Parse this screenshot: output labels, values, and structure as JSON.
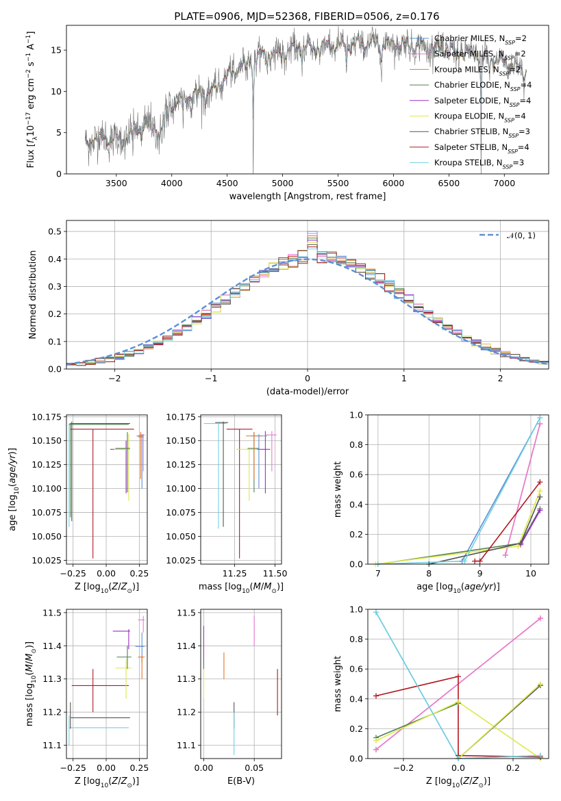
{
  "figure": {
    "title": "PLATE=0906, MJD=52368, FIBERID=0506, z=0.176"
  },
  "series_styles": [
    {
      "name": "Chabrier MILES",
      "color": "#5b8fd6"
    },
    {
      "name": "Salpeter MILES",
      "color": "#e879d7"
    },
    {
      "name": "Kroupa MILES",
      "color": "#e2772a"
    },
    {
      "name": "Chabrier ELODIE",
      "color": "#4f7f4f"
    },
    {
      "name": "Salpeter ELODIE",
      "color": "#9b2bc6"
    },
    {
      "name": "Kroupa ELODIE",
      "color": "#dde84a"
    },
    {
      "name": "Chabrier STELIB",
      "color": "#555555"
    },
    {
      "name": "Salpeter STELIB",
      "color": "#b0181f"
    },
    {
      "name": "Kroupa STELIB",
      "color": "#6fd2e0"
    }
  ],
  "chart_data": [
    {
      "id": "spectrum",
      "type": "line",
      "title": "PLATE=0906, MJD=52368, FIBERID=0506, z=0.176",
      "xlabel": "wavelength [Angstrom, rest frame]",
      "ylabel": "Flux [f_λ 10^-17 erg cm^-2 s^-1 A^-1]",
      "xlim": [
        3050,
        7400
      ],
      "ylim": [
        0,
        18
      ],
      "xticks": [
        3500,
        4000,
        4500,
        5000,
        5500,
        6000,
        6500,
        7000
      ],
      "yticks": [
        0,
        5,
        10,
        15
      ],
      "legend": [
        {
          "label": "Chabrier MILES, N",
          "sub": "SSP",
          "suffix": "=2"
        },
        {
          "label": "Salpeter MILES, N",
          "sub": "SSP",
          "suffix": "=2"
        },
        {
          "label": "Kroupa MILES, N",
          "sub": "SSP",
          "suffix": "=2"
        },
        {
          "label": "Chabrier ELODIE, N",
          "sub": "SSP",
          "suffix": "=4"
        },
        {
          "label": "Salpeter ELODIE, N",
          "sub": "SSP",
          "suffix": "=4"
        },
        {
          "label": "Kroupa ELODIE, N",
          "sub": "SSP",
          "suffix": "=4"
        },
        {
          "label": "Chabrier STELIB, N",
          "sub": "SSP",
          "suffix": "=3"
        },
        {
          "label": "Salpeter STELIB, N",
          "sub": "SSP",
          "suffix": "=4"
        },
        {
          "label": "Kroupa STELIB, N",
          "sub": "SSP",
          "suffix": "=3"
        }
      ],
      "legend_position": "upper-right",
      "continuum_knots": [
        [
          3220,
          3.3
        ],
        [
          3300,
          4.4
        ],
        [
          3400,
          4.3
        ],
        [
          3500,
          4.2
        ],
        [
          3600,
          4.5
        ],
        [
          3700,
          5.5
        ],
        [
          3800,
          6.2
        ],
        [
          3900,
          5.0
        ],
        [
          3950,
          8.0
        ],
        [
          4000,
          8.5
        ],
        [
          4200,
          9.5
        ],
        [
          4400,
          10.5
        ],
        [
          4600,
          13.0
        ],
        [
          4800,
          14.3
        ],
        [
          5000,
          14.7
        ],
        [
          5200,
          15.4
        ],
        [
          5400,
          15.5
        ],
        [
          5600,
          15.6
        ],
        [
          5800,
          15.8
        ],
        [
          6000,
          15.7
        ],
        [
          6200,
          15.5
        ],
        [
          6400,
          15.2
        ],
        [
          6600,
          14.8
        ],
        [
          6800,
          14.3
        ],
        [
          7000,
          13.5
        ],
        [
          7200,
          12.5
        ]
      ],
      "absorption_lines": [
        [
          3551,
          2.0
        ],
        [
          3580,
          1.5
        ],
        [
          3650,
          2.0
        ],
        [
          3728,
          1.5
        ],
        [
          3820,
          2.0
        ],
        [
          3889,
          2.0
        ],
        [
          3933,
          4.0
        ],
        [
          3968,
          3.5
        ],
        [
          4102,
          2.5
        ],
        [
          4227,
          1.5
        ],
        [
          4300,
          2.5
        ],
        [
          4340,
          2.0
        ],
        [
          4383,
          1.5
        ],
        [
          4568,
          2.0
        ],
        [
          4668,
          2.0
        ],
        [
          4735,
          13.0
        ],
        [
          4861,
          2.0
        ],
        [
          5015,
          1.5
        ],
        [
          5175,
          3.0
        ],
        [
          5270,
          2.0
        ],
        [
          5335,
          2.0
        ],
        [
          5577,
          4.0
        ],
        [
          5893,
          4.0
        ],
        [
          6300,
          1.5
        ],
        [
          6563,
          2.0
        ],
        [
          6790,
          13.0
        ],
        [
          6867,
          3.0
        ],
        [
          7180,
          1.5
        ]
      ],
      "grid": false
    },
    {
      "id": "residuals",
      "type": "step",
      "xlabel": "(data-model)/error",
      "ylabel": "Normed distribution",
      "xlim": [
        -2.5,
        2.5
      ],
      "ylim": [
        0,
        0.54
      ],
      "xticks": [
        -2,
        -1,
        0,
        1,
        2
      ],
      "yticks": [
        0.0,
        0.1,
        0.2,
        0.3,
        0.4,
        0.5
      ],
      "bin_width": 0.1,
      "legend": [
        "𝒩(0, 1)"
      ],
      "legend_position": "upper-right",
      "reference_curve": "normal(0,1)",
      "grid": true
    },
    {
      "id": "age_vs_Z",
      "type": "errorbar",
      "xlabel": "Z [log10(Z/Z⊙)]",
      "ylabel": "age [log10(age/yr)]",
      "xlim": [
        -0.3,
        0.31
      ],
      "ylim": [
        10.021,
        10.177
      ],
      "xticks": [
        -0.25,
        0,
        0.25
      ],
      "yticks": [
        10.025,
        10.05,
        10.075,
        10.1,
        10.125,
        10.15,
        10.175
      ],
      "points": [
        {
          "x": -0.28,
          "y": 10.168,
          "xerr": 0.0,
          "yerr": 0.107,
          "xr": [
            -0.28,
            0.18
          ],
          "yr": [
            10.06,
            10.168
          ]
        },
        {
          "x": -0.1,
          "y": 10.162,
          "xr": [
            -0.28,
            0.21
          ],
          "yr": [
            10.027,
            10.162
          ]
        },
        {
          "x": 0.16,
          "y": 10.142,
          "xr": [
            0.02,
            0.22
          ],
          "yr": [
            10.087,
            10.159
          ]
        },
        {
          "x": 0.25,
          "y": 10.155,
          "xr": [
            0.21,
            0.31
          ],
          "yr": [
            10.1,
            10.159
          ]
        }
      ],
      "grid": true
    },
    {
      "id": "age_vs_mass",
      "type": "errorbar",
      "xlabel": "mass [log10(M/M⊙)]",
      "ylabel": "",
      "xlim": [
        11.04,
        11.54
      ],
      "ylim": [
        10.021,
        10.177
      ],
      "xticks": [
        11.25,
        11.5
      ],
      "yticks": [
        10.025,
        10.05,
        10.075,
        10.1,
        10.125,
        10.15,
        10.175
      ],
      "grid": true
    },
    {
      "id": "weight_vs_age",
      "type": "line",
      "xlabel": "age [log10(age/yr)]",
      "ylabel": "mass weight",
      "xlim": [
        6.8,
        10.35
      ],
      "ylim": [
        0,
        1
      ],
      "xticks": [
        7,
        8,
        9,
        10
      ],
      "yticks": [
        0.0,
        0.2,
        0.4,
        0.6,
        0.8,
        1.0
      ],
      "series": [
        {
          "name": "Chabrier MILES",
          "x": [
            8.65,
            10.18
          ],
          "y": [
            0.02,
            0.98
          ]
        },
        {
          "name": "Kroupa MILES",
          "x": [
            9.5,
            10.18
          ],
          "y": [
            0.06,
            0.94
          ]
        },
        {
          "name": "Salpeter MILES",
          "x": [
            9.5,
            10.18
          ],
          "y": [
            0.06,
            0.94
          ]
        },
        {
          "name": "Chabrier ELODIE",
          "x": [
            7.0,
            9.8,
            10.18
          ],
          "y": [
            0.0,
            0.14,
            0.37
          ]
        },
        {
          "name": "Salpeter ELODIE",
          "x": [
            9.8,
            10.18
          ],
          "y": [
            0.13,
            0.36
          ]
        },
        {
          "name": "Kroupa ELODIE",
          "x": [
            6.95,
            9.75,
            10.18
          ],
          "y": [
            0.0,
            0.12,
            0.49
          ]
        },
        {
          "name": "Chabrier STELIB",
          "x": [
            8.0,
            9.8,
            10.18
          ],
          "y": [
            0.0,
            0.14,
            0.45
          ]
        },
        {
          "name": "Salpeter STELIB",
          "x": [
            8.9,
            9.0,
            10.18
          ],
          "y": [
            0.02,
            0.02,
            0.55
          ]
        },
        {
          "name": "Kroupa STELIB",
          "x": [
            7.0,
            8.7,
            10.18
          ],
          "y": [
            0.0,
            0.02,
            0.98
          ]
        }
      ],
      "grid": true
    },
    {
      "id": "mass_vs_Z",
      "type": "errorbar",
      "xlabel": "Z [log10(Z/Z⊙)]",
      "ylabel": "mass [log10(M/M⊙)]",
      "xlim": [
        -0.3,
        0.31
      ],
      "ylim": [
        11.06,
        11.51
      ],
      "xticks": [
        -0.25,
        0,
        0.25
      ],
      "yticks": [
        11.1,
        11.2,
        11.3,
        11.4,
        11.5
      ],
      "grid": true
    },
    {
      "id": "mass_vs_ebv",
      "type": "errorbar",
      "xlabel": "E(B-V)",
      "ylabel": "",
      "xlim": [
        -0.003,
        0.077
      ],
      "ylim": [
        11.06,
        11.51
      ],
      "xticks": [
        0.0,
        0.05
      ],
      "yticks": [
        11.1,
        11.2,
        11.3,
        11.4,
        11.5
      ],
      "grid": true
    },
    {
      "id": "weight_vs_Z",
      "type": "line",
      "xlabel": "Z [log10(Z/Z⊙)]",
      "ylabel": "mass weight",
      "xlim": [
        -0.33,
        0.33
      ],
      "ylim": [
        0,
        1
      ],
      "xticks": [
        -0.2,
        0.0,
        0.2
      ],
      "yticks": [
        0.0,
        0.2,
        0.4,
        0.6,
        0.8,
        1.0
      ],
      "series": [
        {
          "name": "Chabrier MILES",
          "x": [
            -0.3,
            0.0,
            0.3
          ],
          "y": [
            0.98,
            0.0,
            0.02
          ]
        },
        {
          "name": "Kroupa MILES",
          "x": [
            -0.3,
            0.3
          ],
          "y": [
            0.06,
            0.94
          ]
        },
        {
          "name": "Salpeter MILES",
          "x": [
            -0.3,
            0.3
          ],
          "y": [
            0.06,
            0.94
          ]
        },
        {
          "name": "Chabrier ELODIE",
          "x": [
            -0.3,
            0.0
          ],
          "y": [
            0.14,
            0.37
          ]
        },
        {
          "name": "Kroupa ELODIE",
          "x": [
            -0.3,
            0.0,
            0.3
          ],
          "y": [
            0.12,
            0.38,
            0.0
          ]
        },
        {
          "name": "Salpeter STELIB",
          "x": [
            -0.3,
            0.0,
            0.0,
            0.3
          ],
          "y": [
            0.42,
            0.55,
            0.02,
            0.01
          ]
        },
        {
          "name": "Chabrier STELIB",
          "x": [
            0.0,
            0.3
          ],
          "y": [
            0.0,
            0.49
          ]
        },
        {
          "name": "Kroupa ELODIE",
          "x": [
            0.0,
            0.3
          ],
          "y": [
            0.0,
            0.5
          ]
        },
        {
          "name": "Kroupa STELIB",
          "x": [
            -0.3,
            0.0,
            0.3
          ],
          "y": [
            0.98,
            0.0,
            0.02
          ]
        }
      ],
      "grid": true
    }
  ]
}
